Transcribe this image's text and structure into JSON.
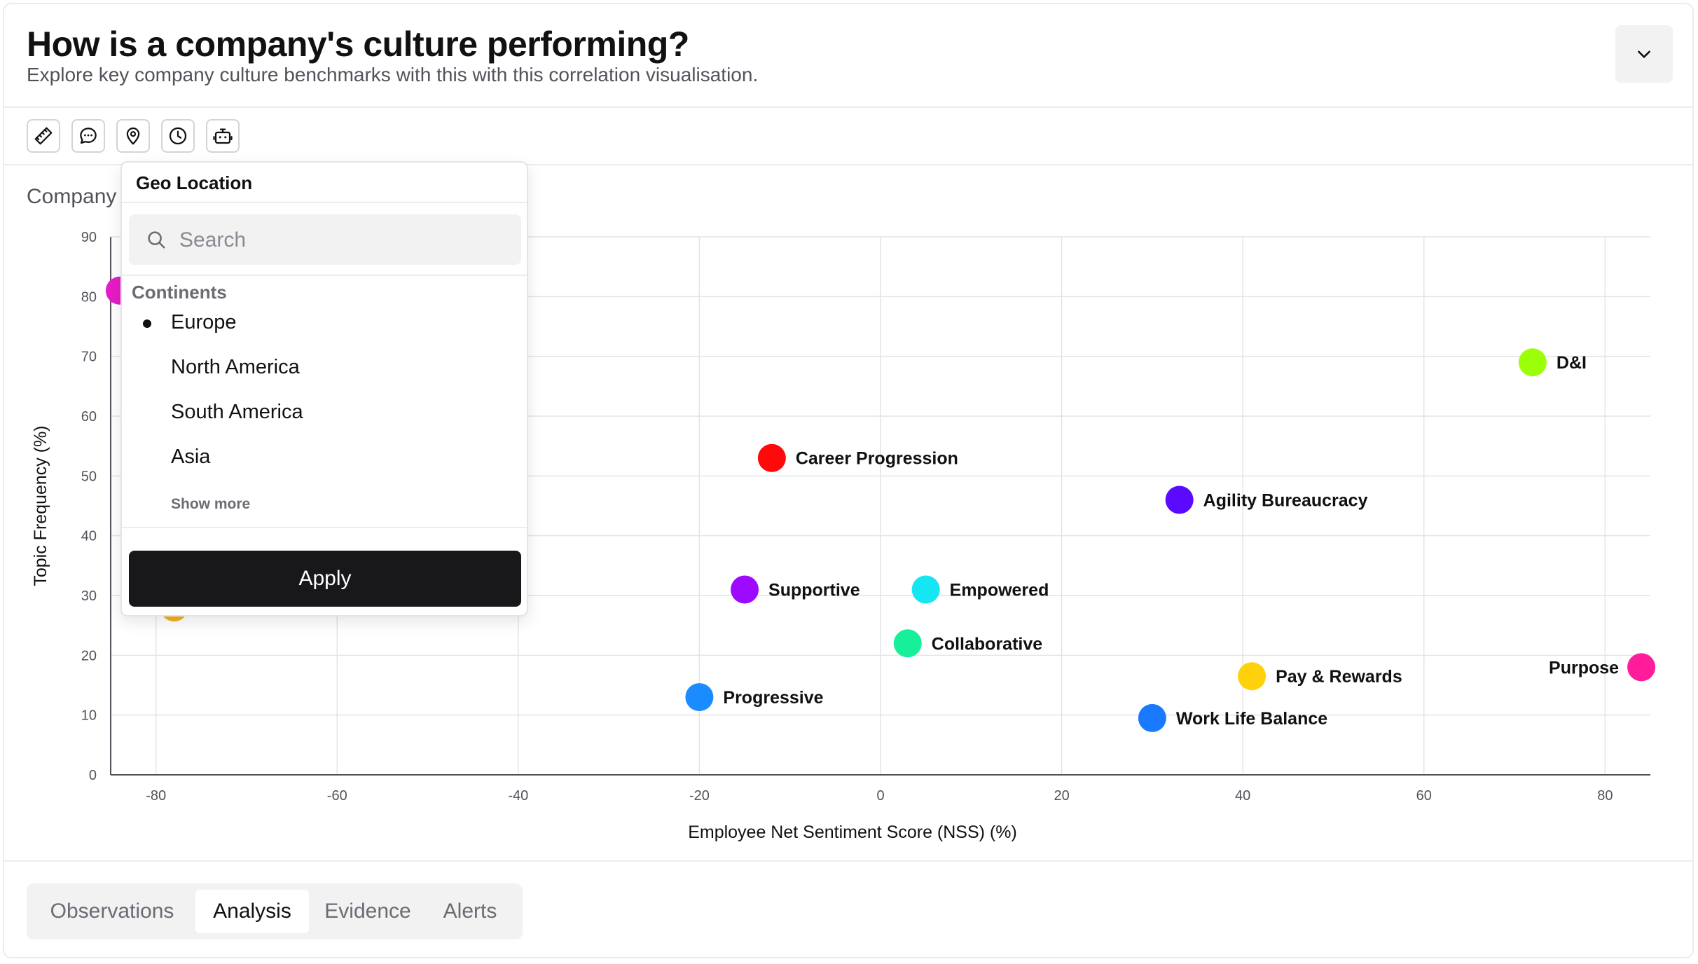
{
  "header": {
    "title": "How is a company's culture performing?",
    "subtitle": "Explore key company culture benchmarks with this with this correlation visualisation."
  },
  "toolbar": {
    "tools": [
      {
        "name": "ruler-icon"
      },
      {
        "name": "chat-icon"
      },
      {
        "name": "location-pin-icon"
      },
      {
        "name": "clock-icon"
      },
      {
        "name": "robot-icon"
      }
    ]
  },
  "chart_heading": "Company",
  "chart_data": {
    "type": "scatter",
    "title": "Company",
    "xlabel": "Employee Net Sentiment Score (NSS) (%)",
    "ylabel": "Topic Frequency (%)",
    "xlim": [
      -85,
      85
    ],
    "ylim": [
      0,
      90
    ],
    "xticks": [
      -80,
      -60,
      -40,
      -20,
      0,
      20,
      40,
      60,
      80
    ],
    "yticks": [
      0,
      10,
      20,
      30,
      40,
      50,
      60,
      70,
      80,
      90
    ],
    "grid": true,
    "points": [
      {
        "label": "D&I",
        "x": 72,
        "y": 69,
        "color": "#9cff0a",
        "label_side": "right"
      },
      {
        "label": "Career Progression",
        "x": -12,
        "y": 53,
        "color": "#ff0a0a",
        "label_side": "right"
      },
      {
        "label": "Agility Bureaucracy",
        "x": 33,
        "y": 46,
        "color": "#5a0aff",
        "label_side": "right"
      },
      {
        "label": "Supportive",
        "x": -15,
        "y": 31,
        "color": "#9d0aff",
        "label_side": "right"
      },
      {
        "label": "Empowered",
        "x": 5,
        "y": 31,
        "color": "#16e6f2",
        "label_side": "right"
      },
      {
        "label": "Collaborative",
        "x": 3,
        "y": 22,
        "color": "#18ef9a",
        "label_side": "right"
      },
      {
        "label": "Pay & Rewards",
        "x": 41,
        "y": 16.5,
        "color": "#ffd10a",
        "label_side": "right"
      },
      {
        "label": "Purpose",
        "x": 84,
        "y": 18,
        "color": "#ff1c9a",
        "label_side": "left"
      },
      {
        "label": "Progressive",
        "x": -20,
        "y": 13,
        "color": "#1a8cff",
        "label_side": "right"
      },
      {
        "label": "Work Life Balance",
        "x": 30,
        "y": 9.5,
        "color": "#1a7aff",
        "label_side": "right"
      },
      {
        "label": "",
        "x": -84,
        "y": 81,
        "color": "#e61cc8",
        "label_side": "right"
      },
      {
        "label": "",
        "x": -78,
        "y": 28,
        "color": "#f0b020",
        "label_side": "right"
      }
    ]
  },
  "geo_filter": {
    "title": "Geo Location",
    "search_placeholder": "Search",
    "group_label": "Continents",
    "options": [
      {
        "label": "Europe",
        "selected": true
      },
      {
        "label": "North America",
        "selected": false
      },
      {
        "label": "South America",
        "selected": false
      },
      {
        "label": "Asia",
        "selected": false
      }
    ],
    "show_more": "Show more",
    "apply_label": "Apply"
  },
  "tabs": [
    {
      "label": "Observations",
      "active": false
    },
    {
      "label": "Analysis",
      "active": true
    },
    {
      "label": "Evidence",
      "active": false
    },
    {
      "label": "Alerts",
      "active": false
    }
  ]
}
